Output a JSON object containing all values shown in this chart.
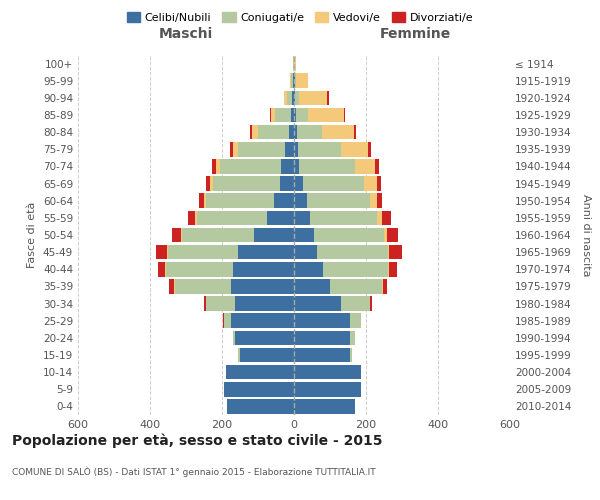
{
  "age_groups": [
    "0-4",
    "5-9",
    "10-14",
    "15-19",
    "20-24",
    "25-29",
    "30-34",
    "35-39",
    "40-44",
    "45-49",
    "50-54",
    "55-59",
    "60-64",
    "65-69",
    "70-74",
    "75-79",
    "80-84",
    "85-89",
    "90-94",
    "95-99",
    "100+"
  ],
  "birth_years": [
    "2010-2014",
    "2005-2009",
    "2000-2004",
    "1995-1999",
    "1990-1994",
    "1985-1989",
    "1980-1984",
    "1975-1979",
    "1970-1974",
    "1965-1969",
    "1960-1964",
    "1955-1959",
    "1950-1954",
    "1945-1949",
    "1940-1944",
    "1935-1939",
    "1930-1934",
    "1925-1929",
    "1920-1924",
    "1915-1919",
    "≤ 1914"
  ],
  "maschi": {
    "celibi": [
      185,
      195,
      190,
      150,
      165,
      175,
      165,
      175,
      170,
      155,
      110,
      75,
      55,
      40,
      35,
      25,
      15,
      8,
      5,
      3,
      1
    ],
    "coniugati": [
      0,
      0,
      0,
      5,
      5,
      20,
      80,
      155,
      185,
      195,
      200,
      195,
      190,
      185,
      170,
      130,
      85,
      45,
      15,
      5,
      1
    ],
    "vedovi": [
      0,
      0,
      0,
      0,
      0,
      0,
      0,
      2,
      3,
      3,
      5,
      5,
      5,
      8,
      12,
      15,
      18,
      12,
      8,
      3,
      1
    ],
    "divorziati": [
      0,
      0,
      0,
      0,
      0,
      3,
      5,
      15,
      20,
      30,
      25,
      20,
      15,
      12,
      10,
      8,
      5,
      3,
      0,
      0,
      0
    ]
  },
  "femmine": {
    "nubili": [
      170,
      185,
      185,
      155,
      155,
      155,
      130,
      100,
      80,
      65,
      55,
      45,
      35,
      25,
      15,
      10,
      8,
      5,
      3,
      2,
      1
    ],
    "coniugate": [
      0,
      0,
      0,
      5,
      15,
      30,
      80,
      145,
      180,
      195,
      195,
      185,
      175,
      170,
      155,
      120,
      70,
      35,
      10,
      3,
      0
    ],
    "vedove": [
      0,
      0,
      0,
      0,
      0,
      0,
      2,
      3,
      5,
      5,
      8,
      15,
      20,
      35,
      55,
      75,
      90,
      100,
      80,
      35,
      5
    ],
    "divorziate": [
      0,
      0,
      0,
      0,
      0,
      2,
      5,
      10,
      20,
      35,
      30,
      25,
      15,
      12,
      10,
      8,
      5,
      3,
      3,
      0,
      0
    ]
  },
  "colors": {
    "celibi": "#3d6fa0",
    "coniugati": "#b5c9a0",
    "vedovi": "#f5c97a",
    "divorziati": "#cc2222"
  },
  "title": "Popolazione per età, sesso e stato civile - 2015",
  "subtitle": "COMUNE DI SALÒ (BS) - Dati ISTAT 1° gennaio 2015 - Elaborazione TUTTITALIA.IT",
  "xlabel_left": "Maschi",
  "xlabel_right": "Femmine",
  "ylabel_left": "Fasce di età",
  "ylabel_right": "Anni di nascita",
  "xlim": 600,
  "background_color": "#ffffff",
  "legend_labels": [
    "Celibi/Nubili",
    "Coniugati/e",
    "Vedovi/e",
    "Divorziati/e"
  ]
}
